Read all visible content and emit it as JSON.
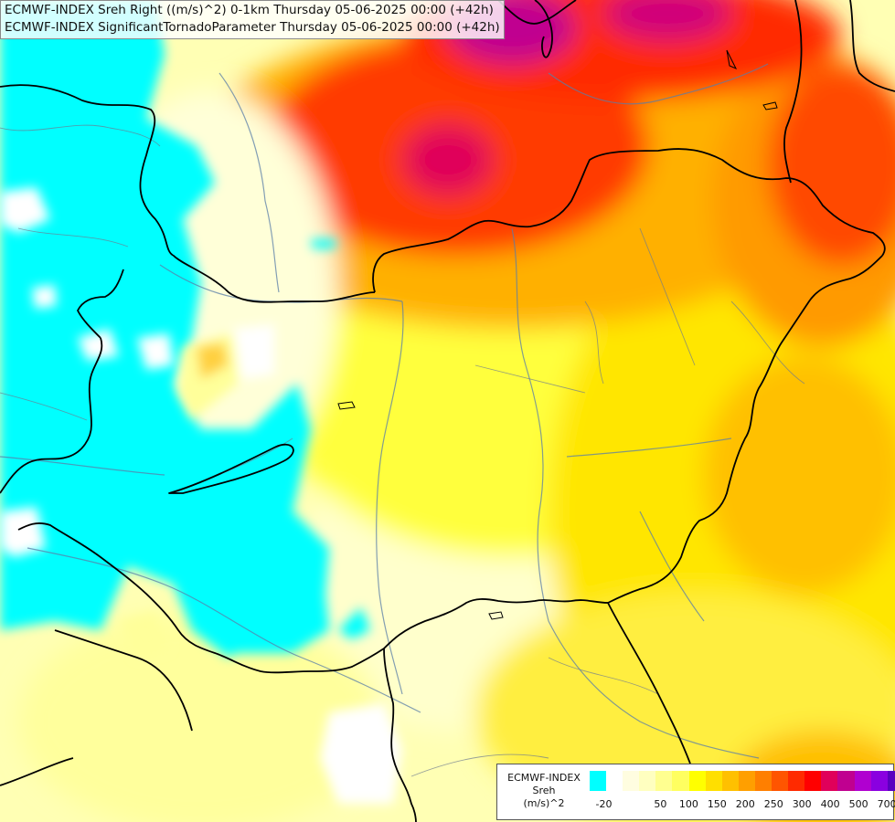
{
  "title": {
    "line1": "ECMWF-INDEX Sreh Right ((m/s)^2) 0-1km Thursday 05-06-2025 00:00 (+42h)",
    "line2": "ECMWF-INDEX SignificantTornadoParameter Thursday 05-06-2025 00:00 (+42h)"
  },
  "legend": {
    "line1": "ECMWF-INDEX",
    "line2": "Sreh",
    "line3": "(m/s)^2",
    "colors": [
      "#00ffff",
      "#ffffff",
      "#fffde0",
      "#ffffc0",
      "#ffff90",
      "#ffff60",
      "#ffff00",
      "#ffdf00",
      "#ffc000",
      "#ff9f00",
      "#ff7f00",
      "#ff5500",
      "#ff2a00",
      "#ff0000",
      "#e0005a",
      "#c00090",
      "#b000d0",
      "#8a00e0",
      "#5a00c0",
      "#2a0090",
      "#00007a"
    ],
    "ticks": [
      "-20",
      "50",
      "100",
      "150",
      "200",
      "250",
      "300",
      "400",
      "500",
      "700"
    ]
  }
}
